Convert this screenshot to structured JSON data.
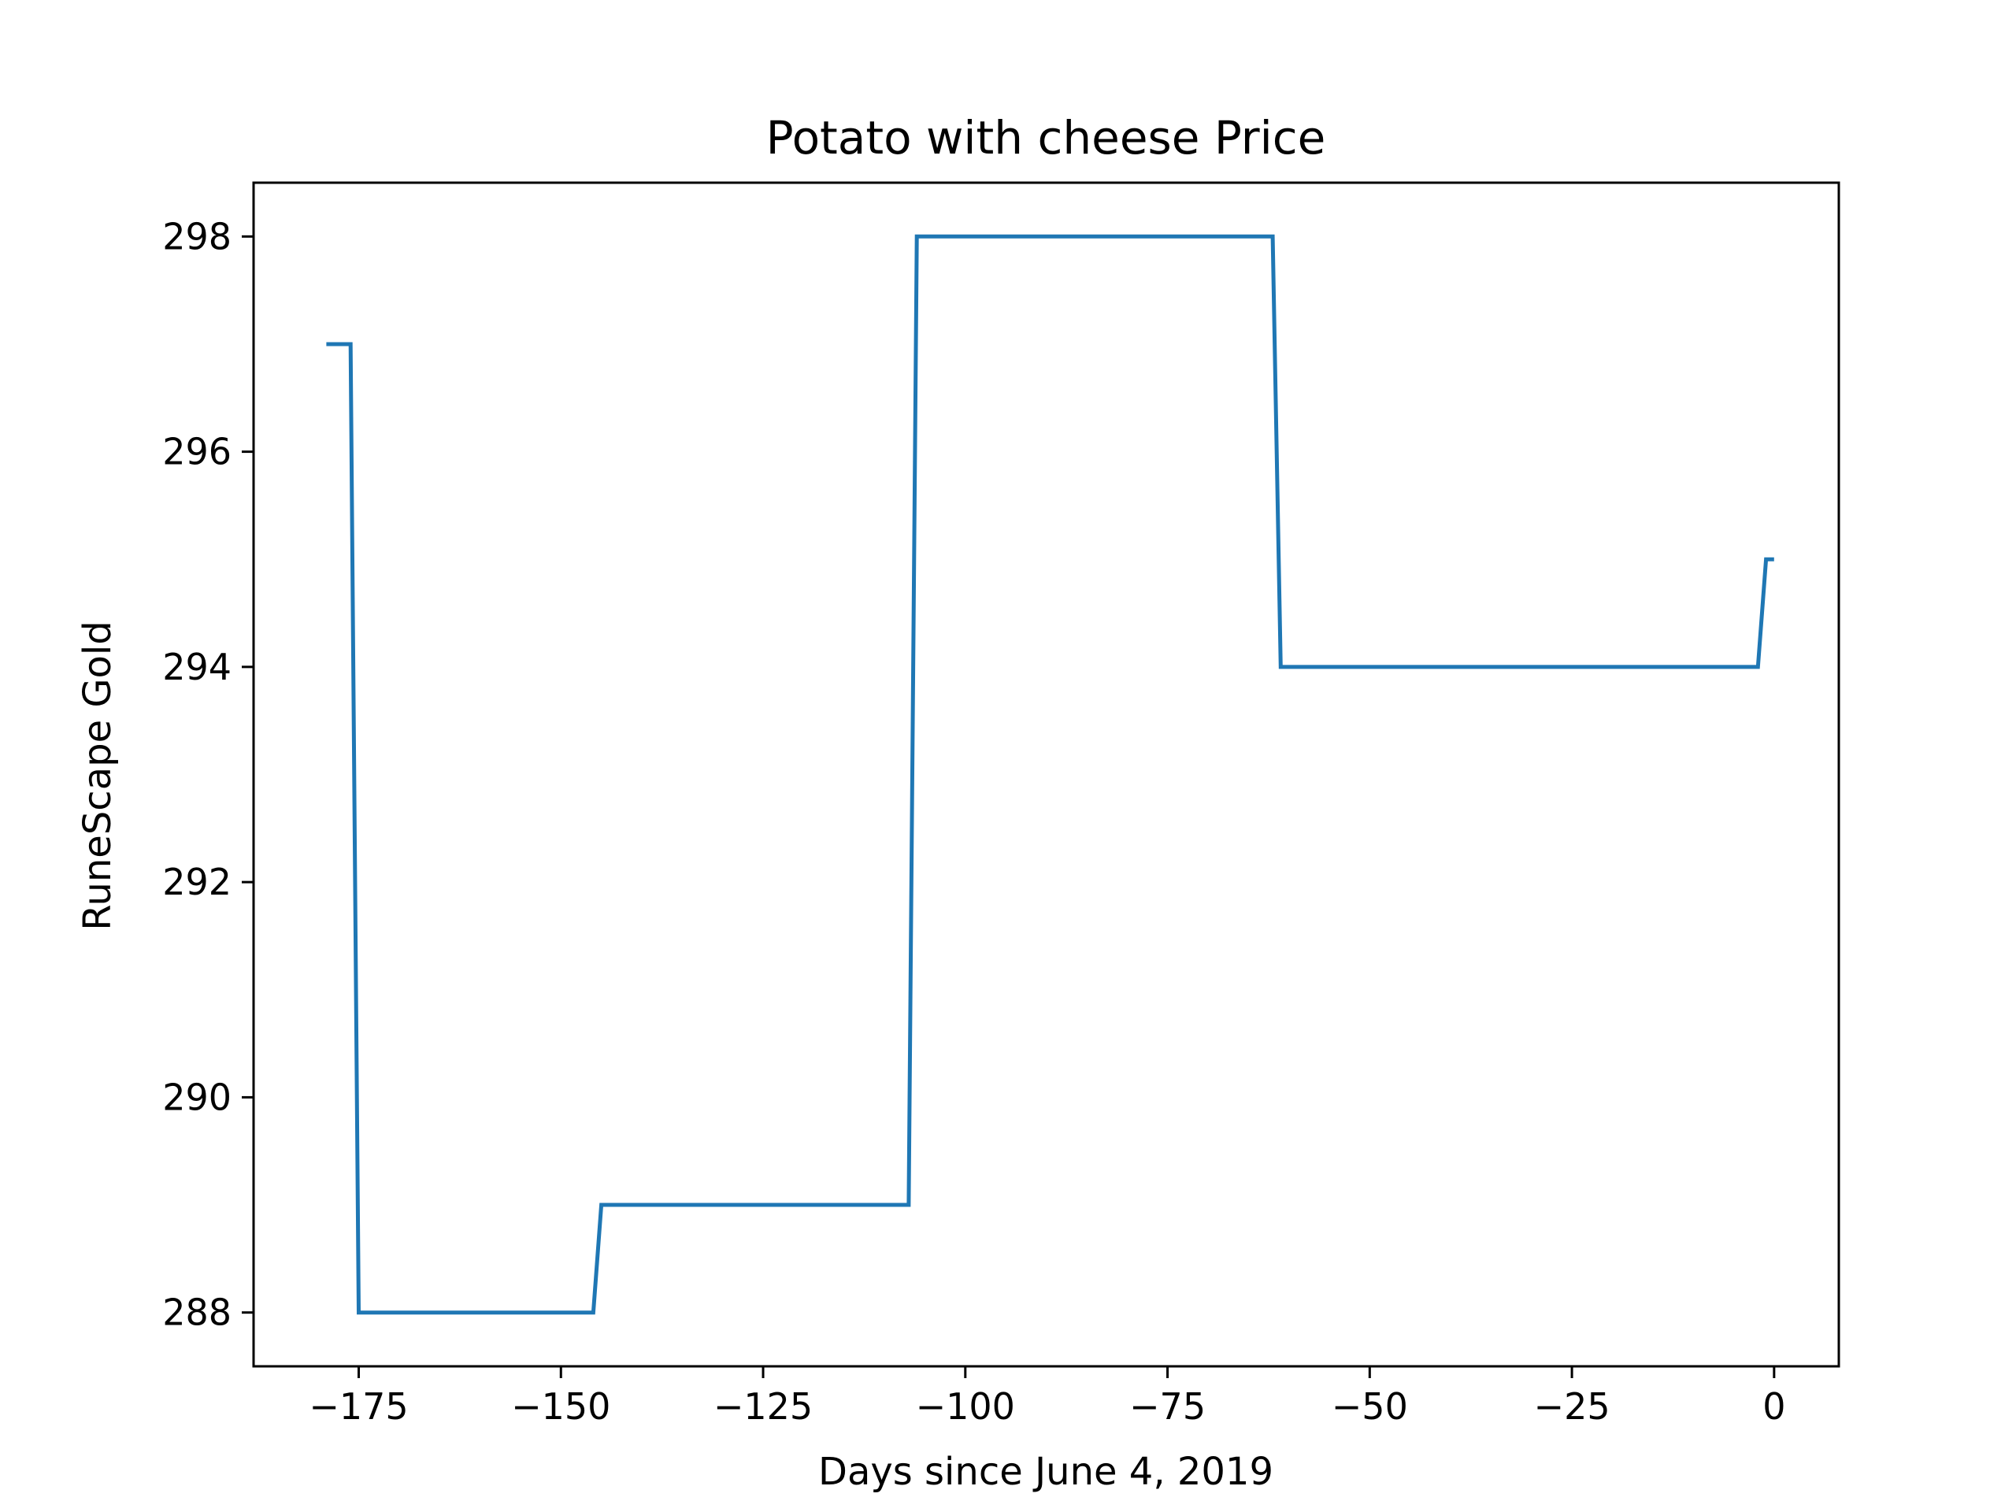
{
  "chart_data": {
    "type": "line",
    "title": "Potato with cheese Price",
    "xlabel": "Days since June 4, 2019",
    "ylabel": "RuneScape Gold",
    "xlim": [
      -188,
      8
    ],
    "ylim": [
      287.5,
      298.5
    ],
    "x_ticks": [
      -175,
      -150,
      -125,
      -100,
      -75,
      -50,
      -25,
      0
    ],
    "x_tick_labels": [
      "−175",
      "−150",
      "−125",
      "−100",
      "−75",
      "−50",
      "−25",
      "0"
    ],
    "y_ticks": [
      288,
      290,
      292,
      294,
      296,
      298
    ],
    "y_tick_labels": [
      "288",
      "290",
      "292",
      "294",
      "296",
      "298"
    ],
    "grid": false,
    "series": [
      {
        "color": "#1f77b4",
        "x": [
          -179,
          -176,
          -175,
          -146,
          -145,
          -107,
          -106,
          -62,
          -61,
          -2,
          -1,
          0
        ],
        "y": [
          297,
          297,
          288,
          288,
          289,
          289,
          298,
          298,
          294,
          294,
          295,
          295
        ]
      }
    ]
  }
}
